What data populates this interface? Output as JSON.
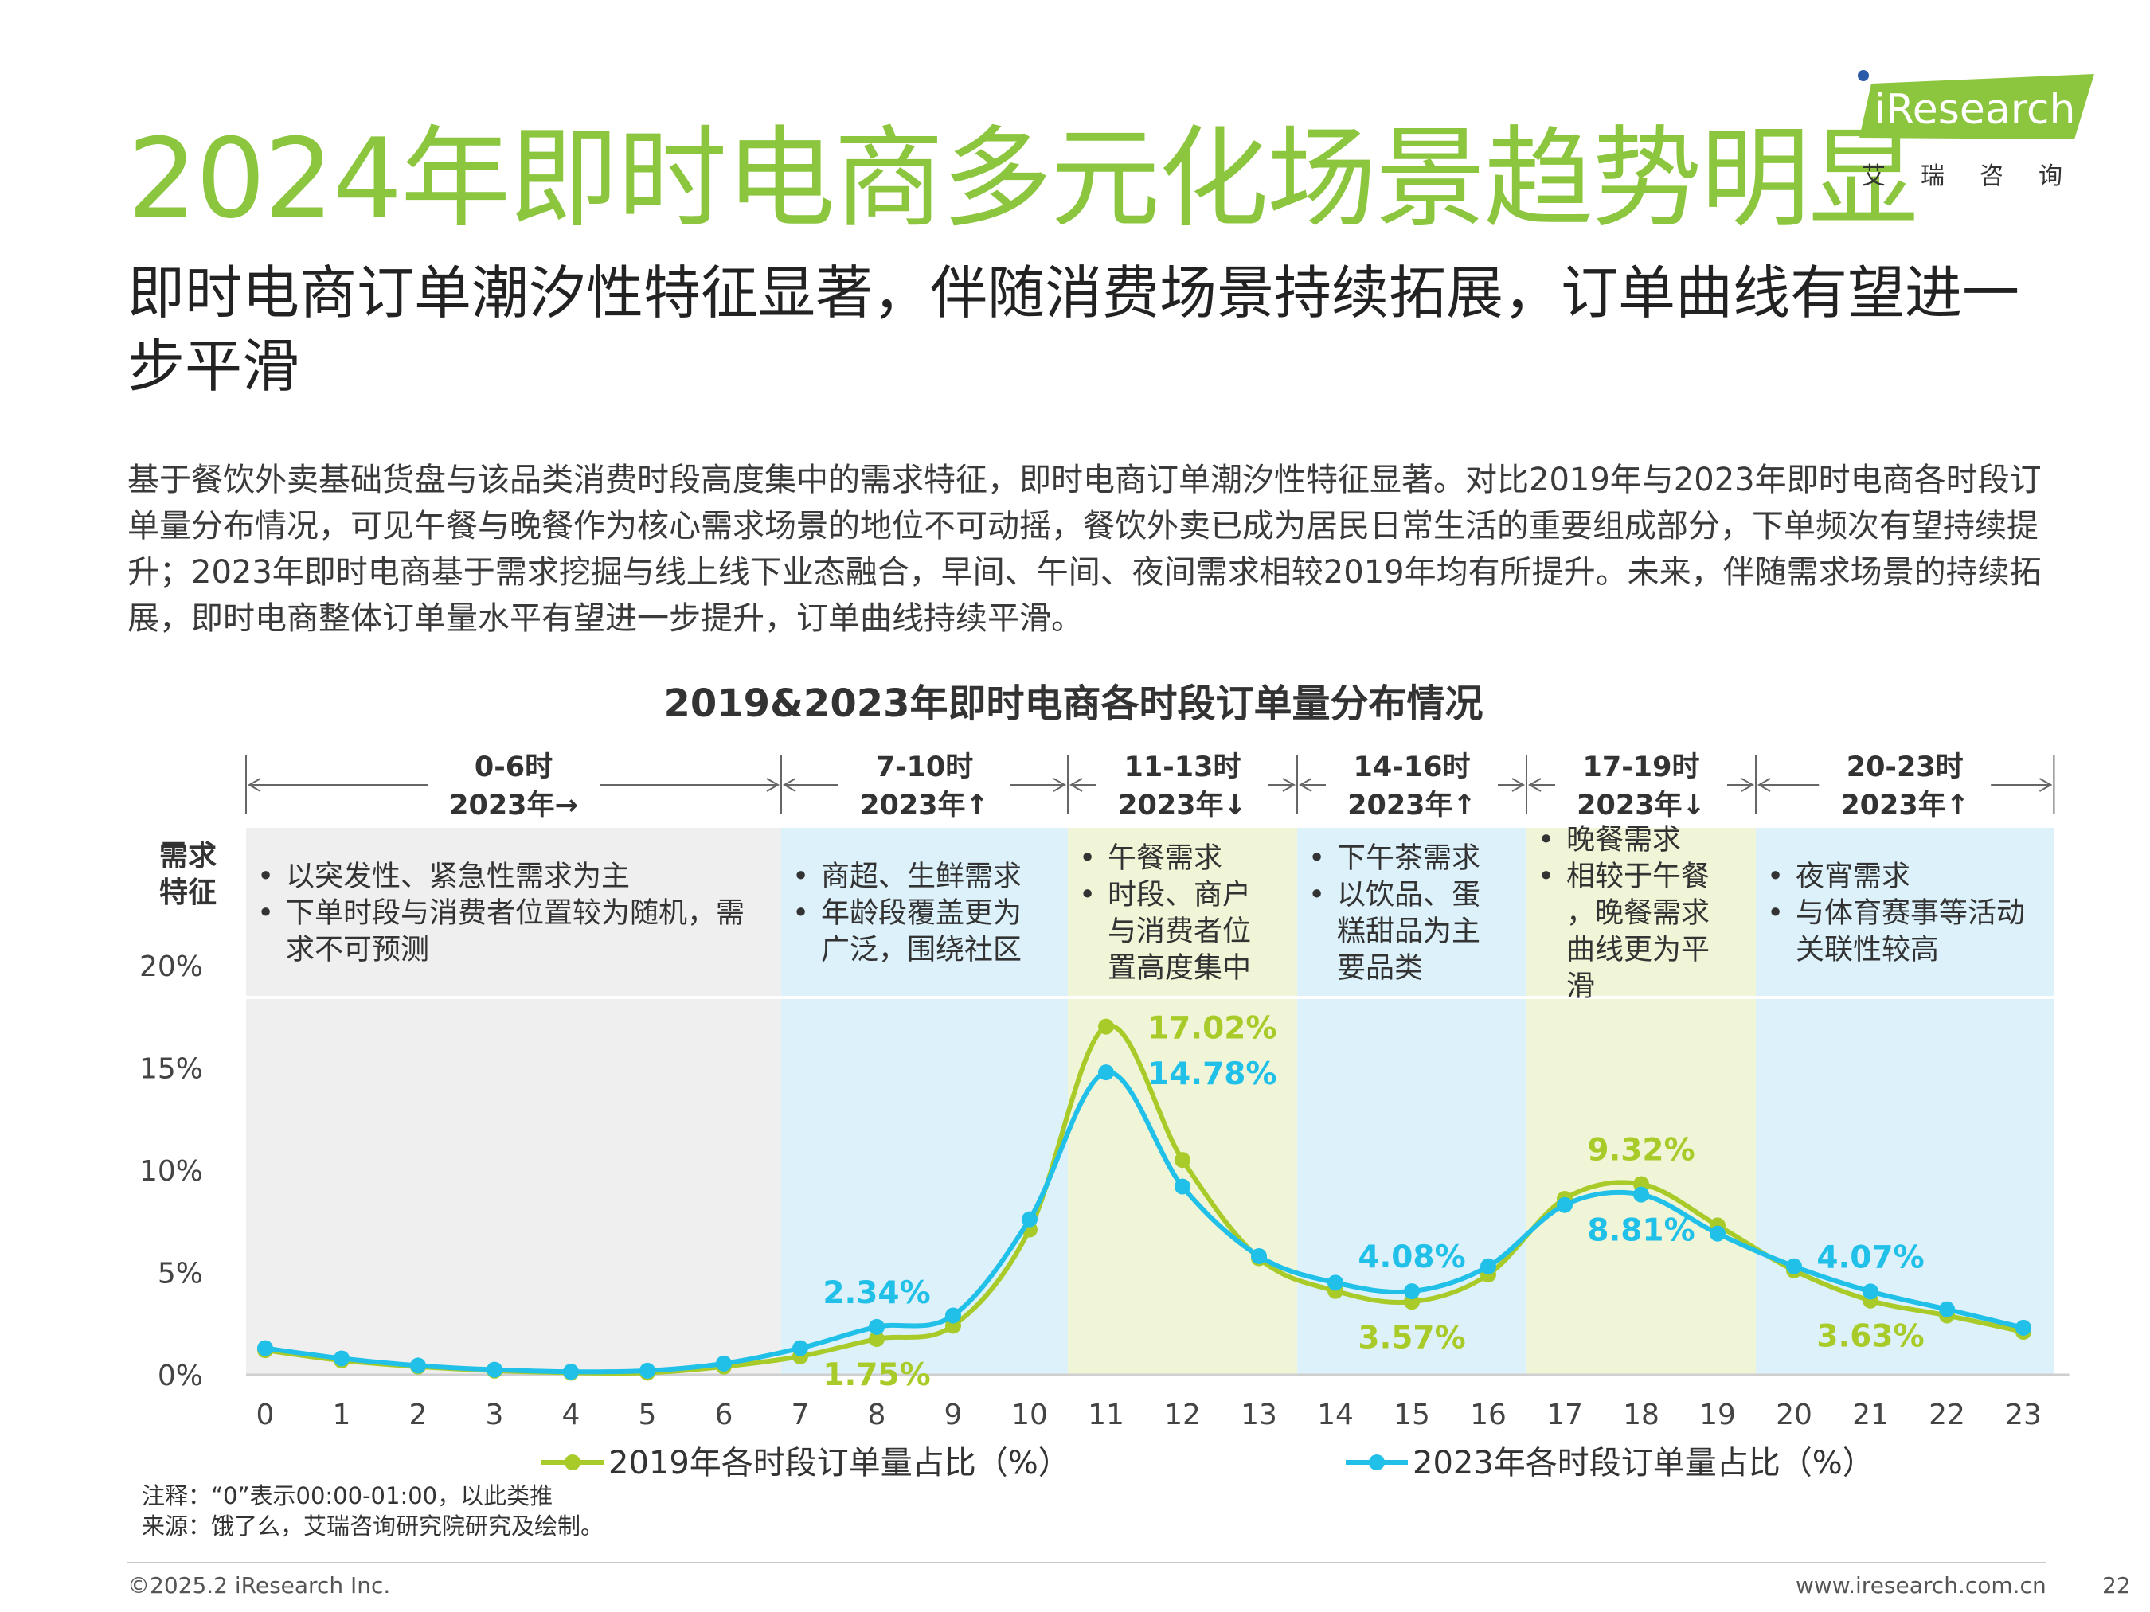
{
  "page": {
    "title": "2024年即时电商多元化场景趋势明显",
    "subtitle": "即时电商订单潮汐性特征显著，伴随消费场景持续拓展，订单曲线有望进一步平滑",
    "body": "基于餐饮外卖基础货盘与该品类消费时段高度集中的需求特征，即时电商订单潮汐性特征显著。对比2019年与2023年即时电商各时段订单量分布情况，可见午餐与晚餐作为核心需求场景的地位不可动摇，餐饮外卖已成为居民日常生活的重要组成部分，下单频次有望持续提升；2023年即时电商基于需求挖掘与线上线下业态融合，早间、午间、夜间需求相较2019年均有所提升。未来，伴随需求场景的持续拓展，即时电商整体订单量水平有望进一步提升，订单曲线持续平滑。",
    "note": "注释：“0”表示00:00-01:00，以此类推",
    "source": "来源：饿了么，艾瑞咨询研究院研究及绘制。",
    "copyright": "©2025.2 iResearch Inc.",
    "website": "www.iresearch.com.cn",
    "page_number": "22"
  },
  "logo": {
    "text": "iResearch",
    "cn": "艾瑞咨询",
    "color": "#8cc63f"
  },
  "colors": {
    "series2019": "#a9cb2a",
    "series2023": "#20c0e8",
    "title": "#8cc63f"
  },
  "chart_data": {
    "type": "line",
    "title": "2019&2023年即时电商各时段订单量分布情况",
    "x": [
      0,
      1,
      2,
      3,
      4,
      5,
      6,
      7,
      8,
      9,
      10,
      11,
      12,
      13,
      14,
      15,
      16,
      17,
      18,
      19,
      20,
      21,
      22,
      23
    ],
    "series": [
      {
        "name": "2019年各时段订单量占比（%）",
        "color": "#a9cb2a",
        "values": [
          1.2,
          0.7,
          0.4,
          0.2,
          0.1,
          0.1,
          0.4,
          0.9,
          1.75,
          2.4,
          7.1,
          17.02,
          10.5,
          5.7,
          4.1,
          3.57,
          4.9,
          8.6,
          9.32,
          7.3,
          5.1,
          3.63,
          2.9,
          2.1
        ]
      },
      {
        "name": "2023年各时段订单量占比（%）",
        "color": "#20c0e8",
        "values": [
          1.3,
          0.8,
          0.45,
          0.25,
          0.15,
          0.2,
          0.55,
          1.3,
          2.34,
          2.9,
          7.6,
          14.78,
          9.2,
          5.8,
          4.5,
          4.08,
          5.3,
          8.3,
          8.81,
          6.9,
          5.3,
          4.07,
          3.2,
          2.3
        ]
      }
    ],
    "yticks": [
      "0%",
      "5%",
      "10%",
      "15%",
      "20%"
    ],
    "ylim": [
      0,
      20
    ],
    "data_labels": [
      {
        "series": 0,
        "x": 8,
        "text": "1.75%",
        "pos": "below"
      },
      {
        "series": 1,
        "x": 8,
        "text": "2.34%",
        "pos": "above"
      },
      {
        "series": 0,
        "x": 11,
        "text": "17.02%",
        "pos": "right"
      },
      {
        "series": 1,
        "x": 11,
        "text": "14.78%",
        "pos": "right"
      },
      {
        "series": 0,
        "x": 15,
        "text": "3.57%",
        "pos": "below"
      },
      {
        "series": 1,
        "x": 15,
        "text": "4.08%",
        "pos": "above"
      },
      {
        "series": 0,
        "x": 18,
        "text": "9.32%",
        "pos": "above"
      },
      {
        "series": 1,
        "x": 18,
        "text": "8.81%",
        "pos": "below"
      },
      {
        "series": 0,
        "x": 21,
        "text": "3.63%",
        "pos": "below"
      },
      {
        "series": 1,
        "x": 21,
        "text": "4.07%",
        "pos": "above"
      }
    ],
    "feature_label": "需求特征",
    "segments": [
      {
        "range": "0-6时",
        "trend": "2023年→",
        "from": -0.25,
        "to": 6.75,
        "bg": "#efefef",
        "features": [
          "以突发性、紧急性需求为主",
          "下单时段与消费者位置较为随机，需求不可预测"
        ]
      },
      {
        "range": "7-10时",
        "trend": "2023年↑",
        "from": 6.75,
        "to": 10.5,
        "bg": "#dcf1fa",
        "features": [
          "商超、生鲜需求",
          "年龄段覆盖更为广泛，围绕社区"
        ]
      },
      {
        "range": "11-13时",
        "trend": "2023年↓",
        "from": 10.5,
        "to": 13.5,
        "bg": "#f1f5d8",
        "features": [
          "午餐需求",
          "时段、商户与消费者位置高度集中"
        ]
      },
      {
        "range": "14-16时",
        "trend": "2023年↑",
        "from": 13.5,
        "to": 16.5,
        "bg": "#dcf1fa",
        "features": [
          "下午茶需求",
          "以饮品、蛋糕甜品为主要品类"
        ]
      },
      {
        "range": "17-19时",
        "trend": "2023年↓",
        "from": 16.5,
        "to": 19.5,
        "bg": "#f1f5d8",
        "features": [
          "晚餐需求",
          "相较于午餐，晚餐需求曲线更为平滑"
        ]
      },
      {
        "range": "20-23时",
        "trend": "2023年↑",
        "from": 19.5,
        "to": 23.4,
        "bg": "#dcf1fa",
        "features": [
          "夜宵需求",
          "与体育赛事等活动关联性较高"
        ]
      }
    ]
  }
}
